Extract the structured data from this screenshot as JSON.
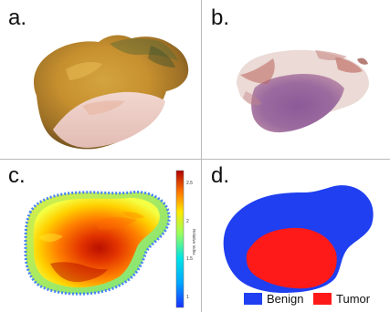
{
  "panels": {
    "a": {
      "label": "a."
    },
    "b": {
      "label": "b."
    },
    "c": {
      "label": "c.",
      "colorbar": {
        "ticks": [
          "2.5",
          "2",
          "1.5",
          "1"
        ],
        "title": "Relative Index",
        "range": [
          1,
          2.5
        ]
      }
    },
    "d": {
      "label": "d.",
      "legend": [
        {
          "label": "Benign",
          "color": "#1f3ff0"
        },
        {
          "label": "Tumor",
          "color": "#ff1a1a"
        }
      ]
    }
  },
  "colors": {
    "grid": "#b9b9b9",
    "benign": "#1f3ff0",
    "tumor": "#ff1a1a"
  }
}
